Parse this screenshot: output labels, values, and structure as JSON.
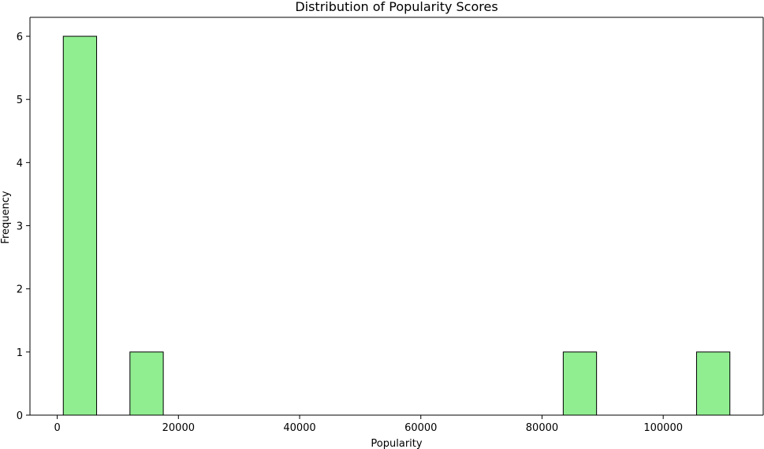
{
  "chart_data": {
    "type": "bar",
    "title": "Distribution of Popularity Scores",
    "xlabel": "Popularity",
    "ylabel": "Frequency",
    "xlim": [
      -4500,
      116500
    ],
    "ylim": [
      0,
      6.3
    ],
    "xticks": [
      0,
      20000,
      40000,
      60000,
      80000,
      100000
    ],
    "yticks": [
      0,
      1,
      2,
      3,
      4,
      5,
      6
    ],
    "bins": [
      {
        "x0": 1000,
        "x1": 6500,
        "count": 6
      },
      {
        "x0": 12000,
        "x1": 17500,
        "count": 1
      },
      {
        "x0": 83500,
        "x1": 89000,
        "count": 1
      },
      {
        "x0": 105500,
        "x1": 111000,
        "count": 1
      }
    ],
    "bar_color": "#90ee90",
    "edge_color": "#000000",
    "grid": false
  }
}
